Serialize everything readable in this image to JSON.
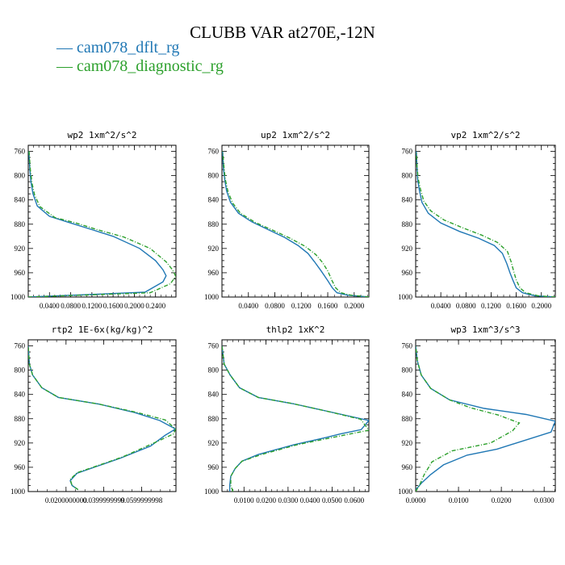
{
  "title": "CLUBB VAR at270E,-12N",
  "legend": [
    {
      "label": "cam078_dflt_rg",
      "color": "#1f77b4"
    },
    {
      "label": "cam078_diagnostic_rg",
      "color": "#2ca02c"
    }
  ],
  "chart_data": [
    {
      "type": "line",
      "title": "wp2  1xm^2/s^2",
      "ylim": [
        1000,
        750
      ],
      "xlim": [
        0,
        0.2785
      ],
      "yticks": [
        "760",
        "800",
        "840",
        "880",
        "920",
        "960",
        "1000"
      ],
      "xticks": [
        "0.0400",
        "0.0800",
        "0.1200",
        "0.1600",
        "0.2000",
        "0.2400"
      ],
      "series": [
        {
          "name": "cam078_dflt_rg",
          "color": "#1f77b4",
          "dash": false,
          "points": [
            [
              0,
              1000
            ],
            [
              0.22,
              992
            ],
            [
              0.254,
              975
            ],
            [
              0.26,
              965
            ],
            [
              0.254,
              955
            ],
            [
              0.24,
              940
            ],
            [
              0.21,
              920
            ],
            [
              0.16,
              900
            ],
            [
              0.12,
              889
            ],
            [
              0.08,
              878
            ],
            [
              0.04,
              867
            ],
            [
              0.017,
              850
            ],
            [
              0.009,
              830
            ],
            [
              0.005,
              810
            ],
            [
              0.003,
              790
            ],
            [
              0.001,
              760
            ]
          ]
        },
        {
          "name": "cam078_diagnostic_rg",
          "color": "#2ca02c",
          "dash": true,
          "points": [
            [
              0,
              1000
            ],
            [
              0.23,
              993
            ],
            [
              0.268,
              978
            ],
            [
              0.278,
              966
            ],
            [
              0.272,
              955
            ],
            [
              0.26,
              942
            ],
            [
              0.23,
              920
            ],
            [
              0.18,
              901
            ],
            [
              0.13,
              889
            ],
            [
              0.09,
              878
            ],
            [
              0.05,
              869
            ],
            [
              0.022,
              851
            ],
            [
              0.012,
              832
            ],
            [
              0.007,
              812
            ],
            [
              0.004,
              790
            ],
            [
              0.0015,
              760
            ]
          ]
        }
      ]
    },
    {
      "type": "line",
      "title": "up2  1xm^2/s^2",
      "ylim": [
        1000,
        750
      ],
      "xlim": [
        0,
        0.2222
      ],
      "yticks": [
        "760",
        "800",
        "840",
        "880",
        "920",
        "960",
        "1000"
      ],
      "xticks": [
        "0.0400",
        "0.0800",
        "0.1200",
        "0.1600",
        "0.2000"
      ],
      "series": [
        {
          "name": "cam078_dflt_rg",
          "color": "#1f77b4",
          "dash": false,
          "points": [
            [
              0.2222,
              1000
            ],
            [
              0.19,
              997
            ],
            [
              0.174,
              993
            ],
            [
              0.167,
              985
            ],
            [
              0.16,
              973
            ],
            [
              0.15,
              957
            ],
            [
              0.14,
              942
            ],
            [
              0.13,
              928
            ],
            [
              0.115,
              915
            ],
            [
              0.095,
              902
            ],
            [
              0.07,
              889
            ],
            [
              0.045,
              876
            ],
            [
              0.025,
              862
            ],
            [
              0.013,
              844
            ],
            [
              0.007,
              825
            ],
            [
              0.004,
              805
            ],
            [
              0.002,
              785
            ],
            [
              0.001,
              760
            ]
          ]
        },
        {
          "name": "cam078_diagnostic_rg",
          "color": "#2ca02c",
          "dash": true,
          "points": [
            [
              0.2222,
              1000
            ],
            [
              0.195,
              997
            ],
            [
              0.18,
              993
            ],
            [
              0.172,
              985
            ],
            [
              0.166,
              972
            ],
            [
              0.16,
              957
            ],
            [
              0.152,
              943
            ],
            [
              0.142,
              930
            ],
            [
              0.125,
              916
            ],
            [
              0.103,
              903
            ],
            [
              0.077,
              890
            ],
            [
              0.05,
              877
            ],
            [
              0.028,
              862
            ],
            [
              0.016,
              845
            ],
            [
              0.009,
              826
            ],
            [
              0.005,
              806
            ],
            [
              0.003,
              786
            ],
            [
              0.001,
              760
            ]
          ]
        }
      ]
    },
    {
      "type": "line",
      "title": "vp2  1xm^2/s^2",
      "ylim": [
        1000,
        750
      ],
      "xlim": [
        0,
        0.2222
      ],
      "yticks": [
        "760",
        "800",
        "840",
        "880",
        "920",
        "960",
        "1000"
      ],
      "xticks": [
        "0.0400",
        "0.0800",
        "0.1200",
        "0.1600",
        "0.2000"
      ],
      "series": [
        {
          "name": "cam078_dflt_rg",
          "color": "#1f77b4",
          "dash": false,
          "points": [
            [
              0.2222,
              1000
            ],
            [
              0.19,
              998
            ],
            [
              0.17,
              993
            ],
            [
              0.16,
              985
            ],
            [
              0.155,
              973
            ],
            [
              0.15,
              960
            ],
            [
              0.145,
              945
            ],
            [
              0.138,
              928
            ],
            [
              0.125,
              915
            ],
            [
              0.1,
              903
            ],
            [
              0.07,
              892
            ],
            [
              0.04,
              878
            ],
            [
              0.02,
              862
            ],
            [
              0.01,
              844
            ],
            [
              0.006,
              825
            ],
            [
              0.003,
              805
            ],
            [
              0.002,
              785
            ],
            [
              0.001,
              760
            ]
          ]
        },
        {
          "name": "cam078_diagnostic_rg",
          "color": "#2ca02c",
          "dash": true,
          "points": [
            [
              0.2222,
              1000
            ],
            [
              0.195,
              998
            ],
            [
              0.175,
              993
            ],
            [
              0.166,
              985
            ],
            [
              0.16,
              972
            ],
            [
              0.156,
              958
            ],
            [
              0.152,
              942
            ],
            [
              0.146,
              925
            ],
            [
              0.13,
              910
            ],
            [
              0.105,
              898
            ],
            [
              0.075,
              886
            ],
            [
              0.045,
              873
            ],
            [
              0.024,
              858
            ],
            [
              0.013,
              842
            ],
            [
              0.008,
              824
            ],
            [
              0.004,
              805
            ],
            [
              0.002,
              785
            ],
            [
              0.001,
              760
            ]
          ]
        }
      ]
    },
    {
      "type": "line",
      "title": "rtp2  1E-6x(kg/kg)^2",
      "ylim": [
        1000,
        750
      ],
      "xlim": [
        0,
        0.0782
      ],
      "yticks": [
        "760",
        "800",
        "840",
        "880",
        "920",
        "960",
        "1000"
      ],
      "xticks": [
        "0.0200000000",
        "0.0399999999",
        "0.0599999998"
      ],
      "series": [
        {
          "name": "cam078_dflt_rg",
          "color": "#1f77b4",
          "dash": false,
          "points": [
            [
              0.0264,
              997
            ],
            [
              0.0232,
              990
            ],
            [
              0.0222,
              982
            ],
            [
              0.0258,
              970
            ],
            [
              0.0368,
              958
            ],
            [
              0.0488,
              945
            ],
            [
              0.0648,
              925
            ],
            [
              0.0726,
              907
            ],
            [
              0.078,
              897
            ],
            [
              0.0696,
              883
            ],
            [
              0.0565,
              870
            ],
            [
              0.0375,
              856
            ],
            [
              0.016,
              845
            ],
            [
              0.0072,
              829
            ],
            [
              0.0023,
              808
            ],
            [
              0.0006,
              790
            ],
            [
              0,
              760
            ]
          ]
        },
        {
          "name": "cam078_diagnostic_rg",
          "color": "#2ca02c",
          "dash": true,
          "points": [
            [
              0.0264,
              997
            ],
            [
              0.0232,
              990
            ],
            [
              0.0222,
              980
            ],
            [
              0.0258,
              969
            ],
            [
              0.038,
              956
            ],
            [
              0.05,
              943
            ],
            [
              0.068,
              918
            ],
            [
              0.0769,
              905
            ],
            [
              0.078,
              897
            ],
            [
              0.0725,
              882
            ],
            [
              0.058,
              870
            ],
            [
              0.0375,
              856
            ],
            [
              0.016,
              845
            ],
            [
              0.0072,
              829
            ],
            [
              0.0023,
              808
            ],
            [
              0.0006,
              790
            ],
            [
              0,
              760
            ]
          ]
        }
      ]
    },
    {
      "type": "line",
      "title": "thlp2  1xK^2",
      "ylim": [
        1000,
        750
      ],
      "xlim": [
        0,
        0.0667
      ],
      "yticks": [
        "760",
        "800",
        "840",
        "880",
        "920",
        "960",
        "1000"
      ],
      "xticks": [
        "0.0100",
        "0.0200",
        "0.0300",
        "0.0400",
        "0.0500",
        "0.0600"
      ],
      "series": [
        {
          "name": "cam078_dflt_rg",
          "color": "#1f77b4",
          "dash": false,
          "points": [
            [
              0.0035,
              1000
            ],
            [
              0.0035,
              990
            ],
            [
              0.004,
              975
            ],
            [
              0.006,
              962
            ],
            [
              0.0091,
              950
            ],
            [
              0.0165,
              939
            ],
            [
              0.0326,
              923
            ],
            [
              0.0472,
              911
            ],
            [
              0.0538,
              905
            ],
            [
              0.0632,
              898
            ],
            [
              0.0667,
              883
            ],
            [
              0.047,
              867
            ],
            [
              0.032,
              855
            ],
            [
              0.0165,
              845
            ],
            [
              0.008,
              829
            ],
            [
              0.0037,
              808
            ],
            [
              0.001,
              790
            ],
            [
              0,
              760
            ]
          ]
        },
        {
          "name": "cam078_diagnostic_rg",
          "color": "#2ca02c",
          "dash": true,
          "points": [
            [
              0.005,
              1000
            ],
            [
              0.004,
              990
            ],
            [
              0.004,
              975
            ],
            [
              0.006,
              962
            ],
            [
              0.0091,
              950
            ],
            [
              0.018,
              939
            ],
            [
              0.034,
              923
            ],
            [
              0.05,
              911
            ],
            [
              0.0667,
              899
            ],
            [
              0.063,
              881
            ],
            [
              0.047,
              867
            ],
            [
              0.032,
              855
            ],
            [
              0.0165,
              845
            ],
            [
              0.008,
              829
            ],
            [
              0.0037,
              808
            ],
            [
              0.001,
              790
            ],
            [
              0,
              760
            ]
          ]
        }
      ]
    },
    {
      "type": "line",
      "title": "wp3  1xm^3/s^3",
      "ylim": [
        1000,
        750
      ],
      "xlim": [
        0,
        0.0326
      ],
      "yticks": [
        "760",
        "800",
        "840",
        "880",
        "920",
        "960",
        "1000"
      ],
      "xticks": [
        "0.0000",
        "0.0100",
        "0.0200",
        "0.0300"
      ],
      "series": [
        {
          "name": "cam078_dflt_rg",
          "color": "#1f77b4",
          "dash": false,
          "points": [
            [
              0,
              997
            ],
            [
              0.0015,
              985
            ],
            [
              0.0035,
              972
            ],
            [
              0.0065,
              956
            ],
            [
              0.012,
              940
            ],
            [
              0.019,
              930
            ],
            [
              0.0316,
              902
            ],
            [
              0.0326,
              884
            ],
            [
              0.0258,
              873
            ],
            [
              0.016,
              863
            ],
            [
              0.0079,
              849
            ],
            [
              0.0035,
              830
            ],
            [
              0.0013,
              808
            ],
            [
              0.0004,
              785
            ],
            [
              0,
              760
            ]
          ]
        },
        {
          "name": "cam078_diagnostic_rg",
          "color": "#2ca02c",
          "dash": true,
          "points": [
            [
              0,
              1000
            ],
            [
              0.001,
              988
            ],
            [
              0.002,
              972
            ],
            [
              0.0038,
              951
            ],
            [
              0.0085,
              933
            ],
            [
              0.0175,
              920
            ],
            [
              0.0226,
              900
            ],
            [
              0.0242,
              887
            ],
            [
              0.0193,
              874
            ],
            [
              0.0128,
              862
            ],
            [
              0.0079,
              849
            ],
            [
              0.0035,
              830
            ],
            [
              0.0013,
              808
            ],
            [
              0.0004,
              785
            ],
            [
              0,
              760
            ]
          ]
        }
      ]
    }
  ]
}
